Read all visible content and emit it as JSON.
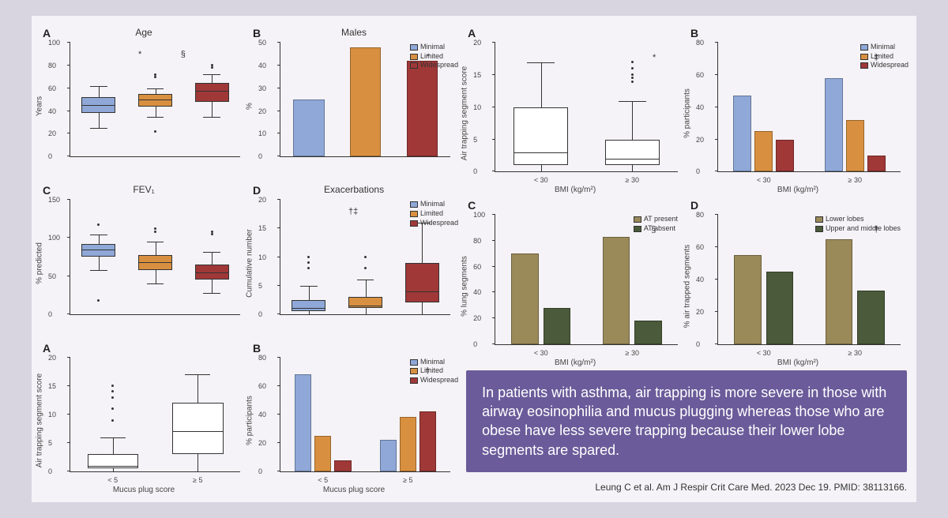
{
  "colors": {
    "minimal": "#8fa8d8",
    "limited": "#d89040",
    "widespread": "#a03838",
    "at_present": "#9a8a5a",
    "at_absent": "#4a5a3a",
    "lower_lobes": "#9a8a5a",
    "upper_lobes": "#4a5a3a",
    "box_fill": "#ffffff",
    "box_stroke": "#333333",
    "bg": "#f5f3f7"
  },
  "legend_main": {
    "items": [
      "Minimal",
      "Limited",
      "Widespread"
    ]
  },
  "legend_at": {
    "items": [
      "AT present",
      "AT absent"
    ]
  },
  "legend_lobes": {
    "items": [
      "Lower lobes",
      "Upper and middle lobes"
    ]
  },
  "left": {
    "A": {
      "label": "A",
      "title": "Age",
      "ylabel": "Years",
      "type": "boxplot",
      "ylim": [
        0,
        100
      ],
      "yticks": [
        0,
        20,
        40,
        60,
        80,
        100
      ],
      "boxes": [
        {
          "q1": 38,
          "med": 45,
          "q3": 52,
          "lo": 25,
          "hi": 62,
          "color": "#8fa8d8"
        },
        {
          "q1": 44,
          "med": 50,
          "q3": 55,
          "lo": 35,
          "hi": 60,
          "color": "#d89040"
        },
        {
          "q1": 48,
          "med": 58,
          "q3": 65,
          "lo": 35,
          "hi": 72,
          "color": "#a03838"
        }
      ],
      "outliers": [
        [
          1,
          70
        ],
        [
          1,
          72
        ],
        [
          1,
          22
        ],
        [
          2,
          78
        ],
        [
          2,
          80
        ]
      ],
      "annotations": [
        "*",
        "§"
      ]
    },
    "B": {
      "label": "B",
      "title": "Males",
      "ylabel": "%",
      "type": "bar",
      "ylim": [
        0,
        50
      ],
      "yticks": [
        0,
        10,
        20,
        30,
        40,
        50
      ],
      "bars": [
        {
          "x": 0,
          "h": 25,
          "color": "#8fa8d8"
        },
        {
          "x": 1,
          "h": 48,
          "color": "#d89040"
        },
        {
          "x": 2,
          "h": 42,
          "color": "#a03838"
        }
      ],
      "annotation": "*",
      "legend_pos": "right"
    },
    "C": {
      "label": "C",
      "title": "FEV₁",
      "ylabel": "% predicted",
      "type": "boxplot",
      "ylim": [
        0,
        150
      ],
      "yticks": [
        0,
        50,
        100,
        150
      ],
      "boxes": [
        {
          "q1": 75,
          "med": 85,
          "q3": 92,
          "lo": 58,
          "hi": 105,
          "color": "#8fa8d8"
        },
        {
          "q1": 58,
          "med": 68,
          "q3": 78,
          "lo": 40,
          "hi": 95,
          "color": "#d89040"
        },
        {
          "q1": 45,
          "med": 55,
          "q3": 65,
          "lo": 28,
          "hi": 82,
          "color": "#a03838"
        }
      ],
      "outliers": [
        [
          0,
          118
        ],
        [
          0,
          18
        ],
        [
          1,
          108
        ],
        [
          1,
          112
        ],
        [
          2,
          105
        ],
        [
          2,
          108
        ]
      ]
    },
    "D": {
      "label": "D",
      "title": "Exacerbations",
      "ylabel": "Cumulative number",
      "type": "boxplot",
      "ylim": [
        0,
        20
      ],
      "yticks": [
        0,
        5,
        10,
        15,
        20
      ],
      "boxes": [
        {
          "q1": 0.5,
          "med": 1,
          "q3": 2.5,
          "lo": 0,
          "hi": 5,
          "color": "#8fa8d8"
        },
        {
          "q1": 1,
          "med": 1.5,
          "q3": 3,
          "lo": 0,
          "hi": 6,
          "color": "#d89040"
        },
        {
          "q1": 2,
          "med": 4,
          "q3": 9,
          "lo": 0,
          "hi": 16,
          "color": "#a03838"
        }
      ],
      "outliers": [
        [
          0,
          8
        ],
        [
          0,
          9
        ],
        [
          0,
          10
        ],
        [
          1,
          8
        ],
        [
          1,
          10
        ]
      ],
      "annotations": [
        "†‡"
      ],
      "legend_pos": "right"
    },
    "E": {
      "label": "A",
      "ylabel": "Air trapping segment score",
      "xlabel": "Mucus plug score",
      "type": "boxplot",
      "ylim": [
        0,
        20
      ],
      "yticks": [
        0,
        5,
        10,
        15,
        20
      ],
      "categories": [
        "< 5",
        "≥ 5"
      ],
      "boxes": [
        {
          "q1": 0.5,
          "med": 1,
          "q3": 3,
          "lo": 0,
          "hi": 6,
          "color": "#ffffff"
        },
        {
          "q1": 3,
          "med": 7,
          "q3": 12,
          "lo": 0,
          "hi": 17,
          "color": "#ffffff"
        }
      ],
      "outliers": [
        [
          0,
          9
        ],
        [
          0,
          11
        ],
        [
          0,
          13
        ],
        [
          0,
          14
        ],
        [
          0,
          15
        ]
      ]
    },
    "F": {
      "label": "B",
      "ylabel": "% participants",
      "xlabel": "Mucus plug score",
      "type": "grouped_bar",
      "ylim": [
        0,
        80
      ],
      "yticks": [
        0,
        20,
        40,
        60,
        80
      ],
      "categories": [
        "< 5",
        "≥ 5"
      ],
      "groups": [
        [
          {
            "h": 68,
            "color": "#8fa8d8"
          },
          {
            "h": 25,
            "color": "#d89040"
          },
          {
            "h": 8,
            "color": "#a03838"
          }
        ],
        [
          {
            "h": 22,
            "color": "#8fa8d8"
          },
          {
            "h": 38,
            "color": "#d89040"
          },
          {
            "h": 42,
            "color": "#a03838"
          }
        ]
      ],
      "annotation": "†",
      "legend_pos": "right"
    }
  },
  "right": {
    "A": {
      "label": "A",
      "ylabel": "Air trapping segment score",
      "xlabel": "BMI (kg/m²)",
      "type": "boxplot",
      "ylim": [
        0,
        20
      ],
      "yticks": [
        0,
        5,
        10,
        15,
        20
      ],
      "categories": [
        "< 30",
        "≥ 30"
      ],
      "boxes": [
        {
          "q1": 1,
          "med": 3,
          "q3": 10,
          "lo": 0,
          "hi": 17,
          "color": "#ffffff"
        },
        {
          "q1": 1,
          "med": 2,
          "q3": 5,
          "lo": 0,
          "hi": 11,
          "color": "#ffffff"
        }
      ],
      "outliers": [
        [
          1,
          14
        ],
        [
          1,
          14.5
        ],
        [
          1,
          15
        ],
        [
          1,
          16
        ],
        [
          1,
          17
        ]
      ],
      "annotation": "*"
    },
    "B": {
      "label": "B",
      "ylabel": "% participants",
      "xlabel": "BMI (kg/m²)",
      "type": "grouped_bar",
      "ylim": [
        0,
        80
      ],
      "yticks": [
        0,
        20,
        40,
        60,
        80
      ],
      "categories": [
        "< 30",
        "≥ 30"
      ],
      "groups": [
        [
          {
            "h": 47,
            "color": "#8fa8d8"
          },
          {
            "h": 25,
            "color": "#d89040"
          },
          {
            "h": 20,
            "color": "#a03838"
          }
        ],
        [
          {
            "h": 58,
            "color": "#8fa8d8"
          },
          {
            "h": 32,
            "color": "#d89040"
          },
          {
            "h": 10,
            "color": "#a03838"
          }
        ]
      ],
      "annotation": "‡",
      "legend_pos": "right"
    },
    "C": {
      "label": "C",
      "ylabel": "% lung segments",
      "xlabel": "BMI (kg/m²)",
      "type": "grouped_bar",
      "ylim": [
        0,
        100
      ],
      "yticks": [
        0,
        20,
        40,
        60,
        80,
        100
      ],
      "categories": [
        "< 30",
        "≥ 30"
      ],
      "groups": [
        [
          {
            "h": 70,
            "color": "#9a8a5a"
          },
          {
            "h": 28,
            "color": "#4a5a3a"
          }
        ],
        [
          {
            "h": 83,
            "color": "#9a8a5a"
          },
          {
            "h": 18,
            "color": "#4a5a3a"
          }
        ]
      ],
      "annotation": "§",
      "legend_pos": "top-right",
      "legend_key": "at"
    },
    "D": {
      "label": "D",
      "ylabel": "% air trapped segments",
      "xlabel": "BMI (kg/m²)",
      "type": "grouped_bar",
      "ylim": [
        0,
        80
      ],
      "yticks": [
        0,
        20,
        40,
        60,
        80
      ],
      "categories": [
        "< 30",
        "≥ 30"
      ],
      "groups": [
        [
          {
            "h": 55,
            "color": "#9a8a5a"
          },
          {
            "h": 45,
            "color": "#4a5a3a"
          }
        ],
        [
          {
            "h": 65,
            "color": "#9a8a5a"
          },
          {
            "h": 33,
            "color": "#4a5a3a"
          }
        ]
      ],
      "annotation": "†",
      "legend_pos": "top-right",
      "legend_key": "lobes"
    }
  },
  "callout": "In patients with asthma, air trapping is more severe in those with airway eosinophilia and mucus plugging whereas those who are obese have less severe trapping because their lower lobe segments are spared.",
  "citation": "Leung C et al. Am J Respir Crit Care Med. 2023 Dec 19. PMID: 38113166."
}
